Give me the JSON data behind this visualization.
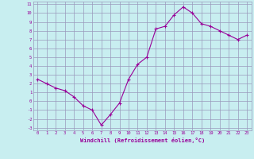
{
  "x": [
    0,
    1,
    2,
    3,
    4,
    5,
    6,
    7,
    8,
    9,
    10,
    11,
    12,
    13,
    14,
    15,
    16,
    17,
    18,
    19,
    20,
    21,
    22,
    23
  ],
  "y": [
    2.5,
    2.0,
    1.5,
    1.2,
    0.5,
    -0.5,
    -1.0,
    -2.7,
    -1.5,
    -0.2,
    2.5,
    4.2,
    5.0,
    8.2,
    8.5,
    9.8,
    10.7,
    10.0,
    8.8,
    8.5,
    8.0,
    7.5,
    7.0,
    7.5
  ],
  "xlabel": "Windchill (Refroidissement éolien,°C)",
  "xlim": [
    -0.5,
    23.5
  ],
  "ylim": [
    -3.3,
    11.3
  ],
  "yticks": [
    -3,
    -2,
    -1,
    0,
    1,
    2,
    3,
    4,
    5,
    6,
    7,
    8,
    9,
    10,
    11
  ],
  "xticks": [
    0,
    1,
    2,
    3,
    4,
    5,
    6,
    7,
    8,
    9,
    10,
    11,
    12,
    13,
    14,
    15,
    16,
    17,
    18,
    19,
    20,
    21,
    22,
    23
  ],
  "line_color": "#990099",
  "marker": "+",
  "bg_color": "#c8eef0",
  "grid_color": "#9999bb",
  "tick_color": "#990099",
  "label_color": "#990099",
  "font": "monospace"
}
